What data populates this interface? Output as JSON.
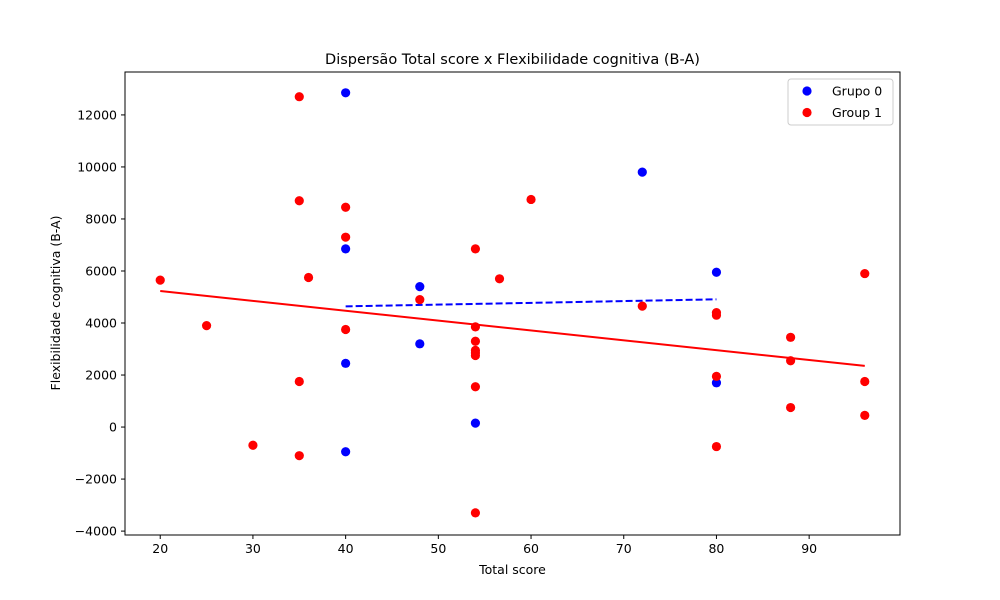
{
  "chart_data": {
    "type": "scatter",
    "title": "Dispersão Total score x Flexibilidade cognitiva (B-A)",
    "xlabel": "Total score",
    "ylabel": "Flexibilidade cognitiva (B-A)",
    "xlim": [
      16.2,
      99.8
    ],
    "ylim": [
      -4150,
      13650
    ],
    "xticks": [
      20,
      30,
      40,
      50,
      60,
      70,
      80,
      90
    ],
    "yticks": [
      -4000,
      -2000,
      0,
      2000,
      4000,
      6000,
      8000,
      10000,
      12000
    ],
    "ytick_labels": [
      "−4000",
      "−2000",
      "0",
      "2000",
      "4000",
      "6000",
      "8000",
      "10000",
      "12000"
    ],
    "xtick_labels": [
      "20",
      "30",
      "40",
      "50",
      "60",
      "70",
      "80",
      "90"
    ],
    "grid": false,
    "legend_position": "top-right",
    "series": [
      {
        "name": "Grupo 0",
        "color": "#0000ff",
        "points": [
          [
            40,
            12850
          ],
          [
            40,
            6850
          ],
          [
            40,
            2450
          ],
          [
            40,
            -950
          ],
          [
            48,
            5400
          ],
          [
            48,
            3200
          ],
          [
            54,
            150
          ],
          [
            72,
            9800
          ],
          [
            80,
            5950
          ],
          [
            80,
            1700
          ]
        ],
        "trendline": {
          "x": [
            40,
            80
          ],
          "y": [
            4640,
            4910
          ],
          "style": "dashed"
        }
      },
      {
        "name": "Group 1",
        "color": "#ff0000",
        "points": [
          [
            20,
            5650
          ],
          [
            25,
            3900
          ],
          [
            30,
            -700
          ],
          [
            35,
            12700
          ],
          [
            35,
            8700
          ],
          [
            35,
            1750
          ],
          [
            35,
            -1100
          ],
          [
            36,
            5750
          ],
          [
            40,
            8450
          ],
          [
            40,
            7300
          ],
          [
            40,
            3750
          ],
          [
            48,
            4900
          ],
          [
            54,
            6850
          ],
          [
            54,
            3850
          ],
          [
            54,
            3300
          ],
          [
            54,
            2950
          ],
          [
            54,
            2850
          ],
          [
            54,
            2750
          ],
          [
            54,
            1550
          ],
          [
            54,
            -3300
          ],
          [
            56.6,
            5700
          ],
          [
            60,
            8750
          ],
          [
            72,
            4650
          ],
          [
            80,
            4400
          ],
          [
            80,
            4300
          ],
          [
            80,
            1950
          ],
          [
            80,
            -750
          ],
          [
            88,
            3450
          ],
          [
            88,
            2550
          ],
          [
            88,
            750
          ],
          [
            96,
            5900
          ],
          [
            96,
            1750
          ],
          [
            96,
            450
          ]
        ],
        "trendline": {
          "x": [
            20,
            96
          ],
          "y": [
            5230,
            2350
          ],
          "style": "solid"
        }
      }
    ]
  }
}
